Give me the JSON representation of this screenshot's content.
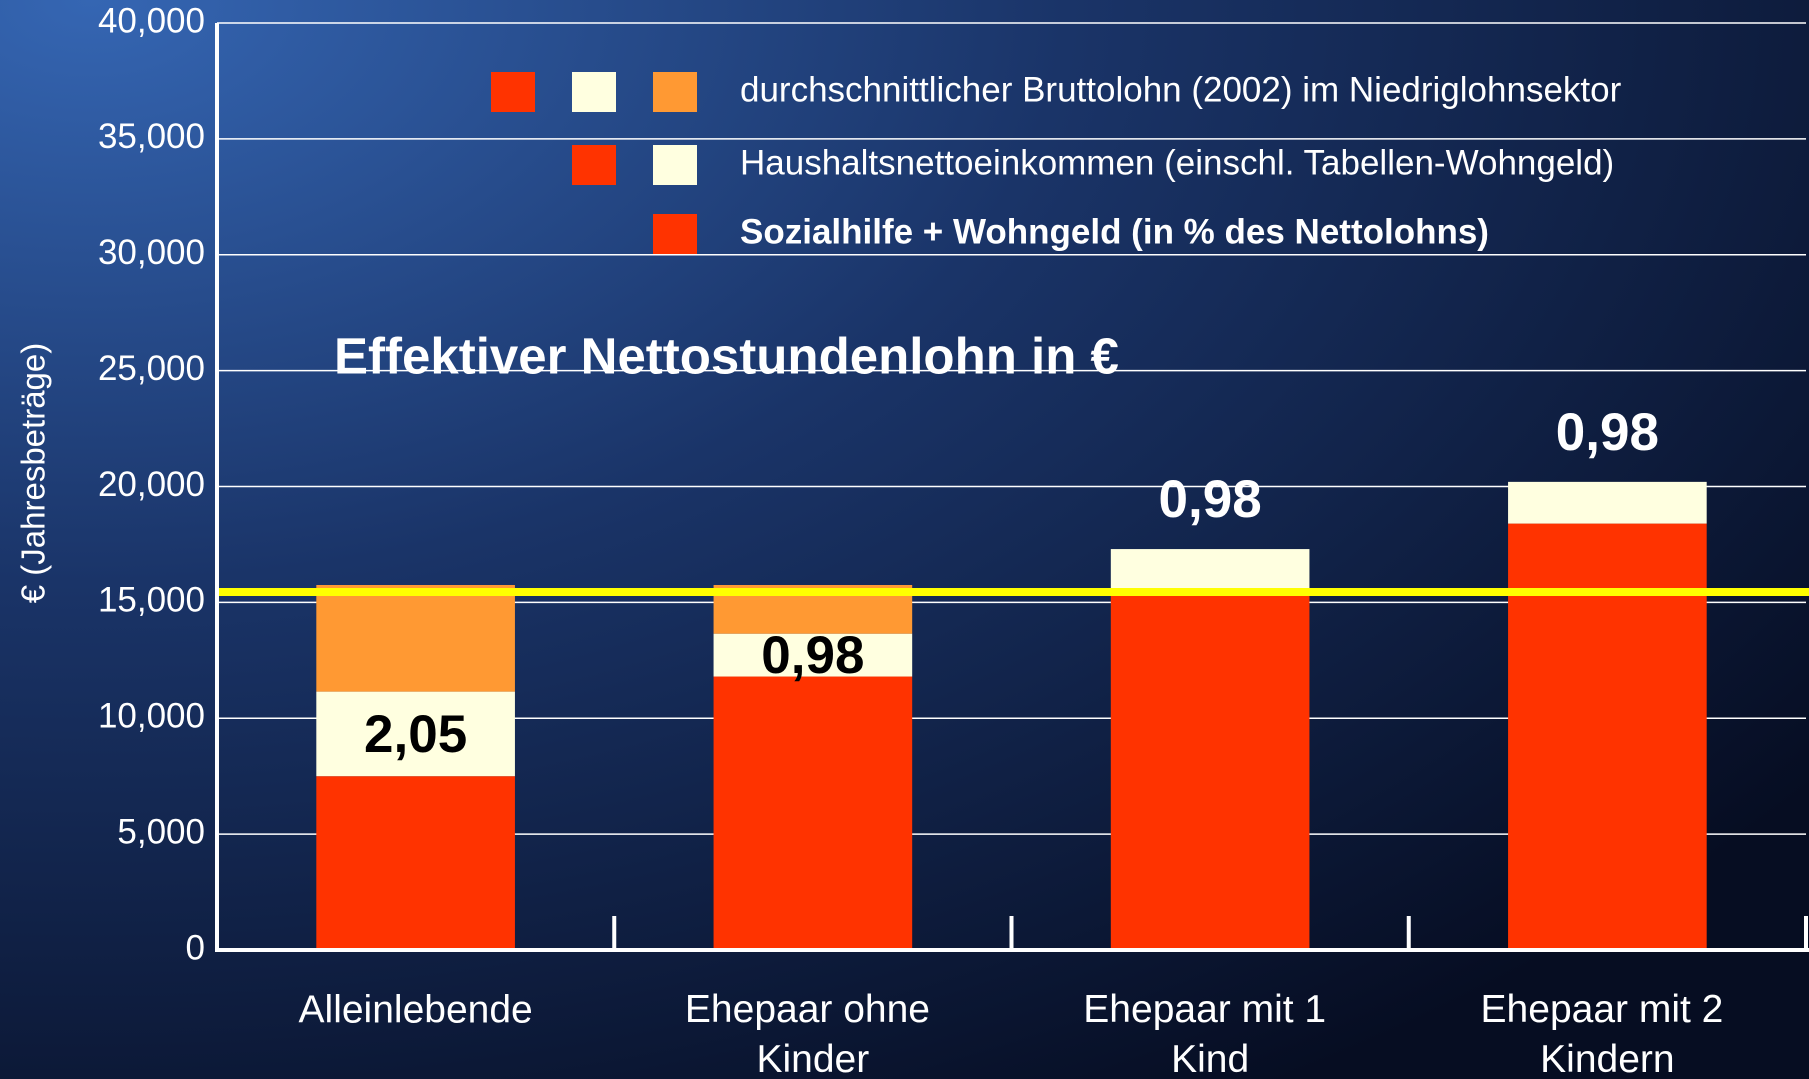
{
  "chart_data": {
    "type": "stacked_bar",
    "title": "Effektiver Nettostundenlohn in €",
    "y_label": "€ (Jahresbeträge)",
    "categories": [
      "Alleinlebende",
      "Ehepaar ohne Kinder",
      "Ehepaar mit 1 Kind",
      "Ehepaar mit 2 Kindern"
    ],
    "series": [
      {
        "color": "#ff3300",
        "values": [
          7500,
          11800,
          15450,
          18400
        ]
      },
      {
        "color": "#ffffe0",
        "values": [
          3650,
          1850,
          1850,
          1800
        ]
      },
      {
        "color": "#ff9933",
        "values": [
          4600,
          2100,
          null,
          null
        ]
      }
    ],
    "hourly_wage": {
      "values": [
        2.05,
        0.98,
        0.98,
        0.98
      ],
      "value_labels": [
        "2,05",
        "0,98",
        "0,98",
        "0,98"
      ]
    },
    "legend": [
      {
        "text": "durchschnittlicher Bruttolohn (2002) im Niedriglohnsektor",
        "colors": [
          "#ff3300",
          "#ffffe0",
          "#ff9933"
        ],
        "bold": false
      },
      {
        "text": "Haushaltsnettoeinkommen (einschl. Tabellen-Wohngeld)",
        "colors": [
          "#ff3300",
          "#ffffe0"
        ],
        "bold": false
      },
      {
        "text": "Sozialhilfe + Wohngeld (in % des Nettolohns)",
        "colors": [
          "#ff3300"
        ],
        "bold": true
      }
    ],
    "reference_line": {
      "value": 15450,
      "color": "#ffff00"
    },
    "ylim": [
      0,
      40000
    ],
    "yticks": [
      0,
      {
        "value": 5000,
        "label": "5,000"
      },
      {
        "value": 10000,
        "label": "10,000"
      },
      {
        "value": 15000,
        "label": "15,000"
      },
      {
        "value": 20000,
        "label": "20,000"
      },
      {
        "value": 25000,
        "label": "25,000"
      },
      {
        "value": 30000,
        "label": "30,000"
      },
      {
        "value": 35000,
        "label": "35,000"
      },
      {
        "value": 40000,
        "label": "40,000"
      }
    ],
    "grid": true
  }
}
